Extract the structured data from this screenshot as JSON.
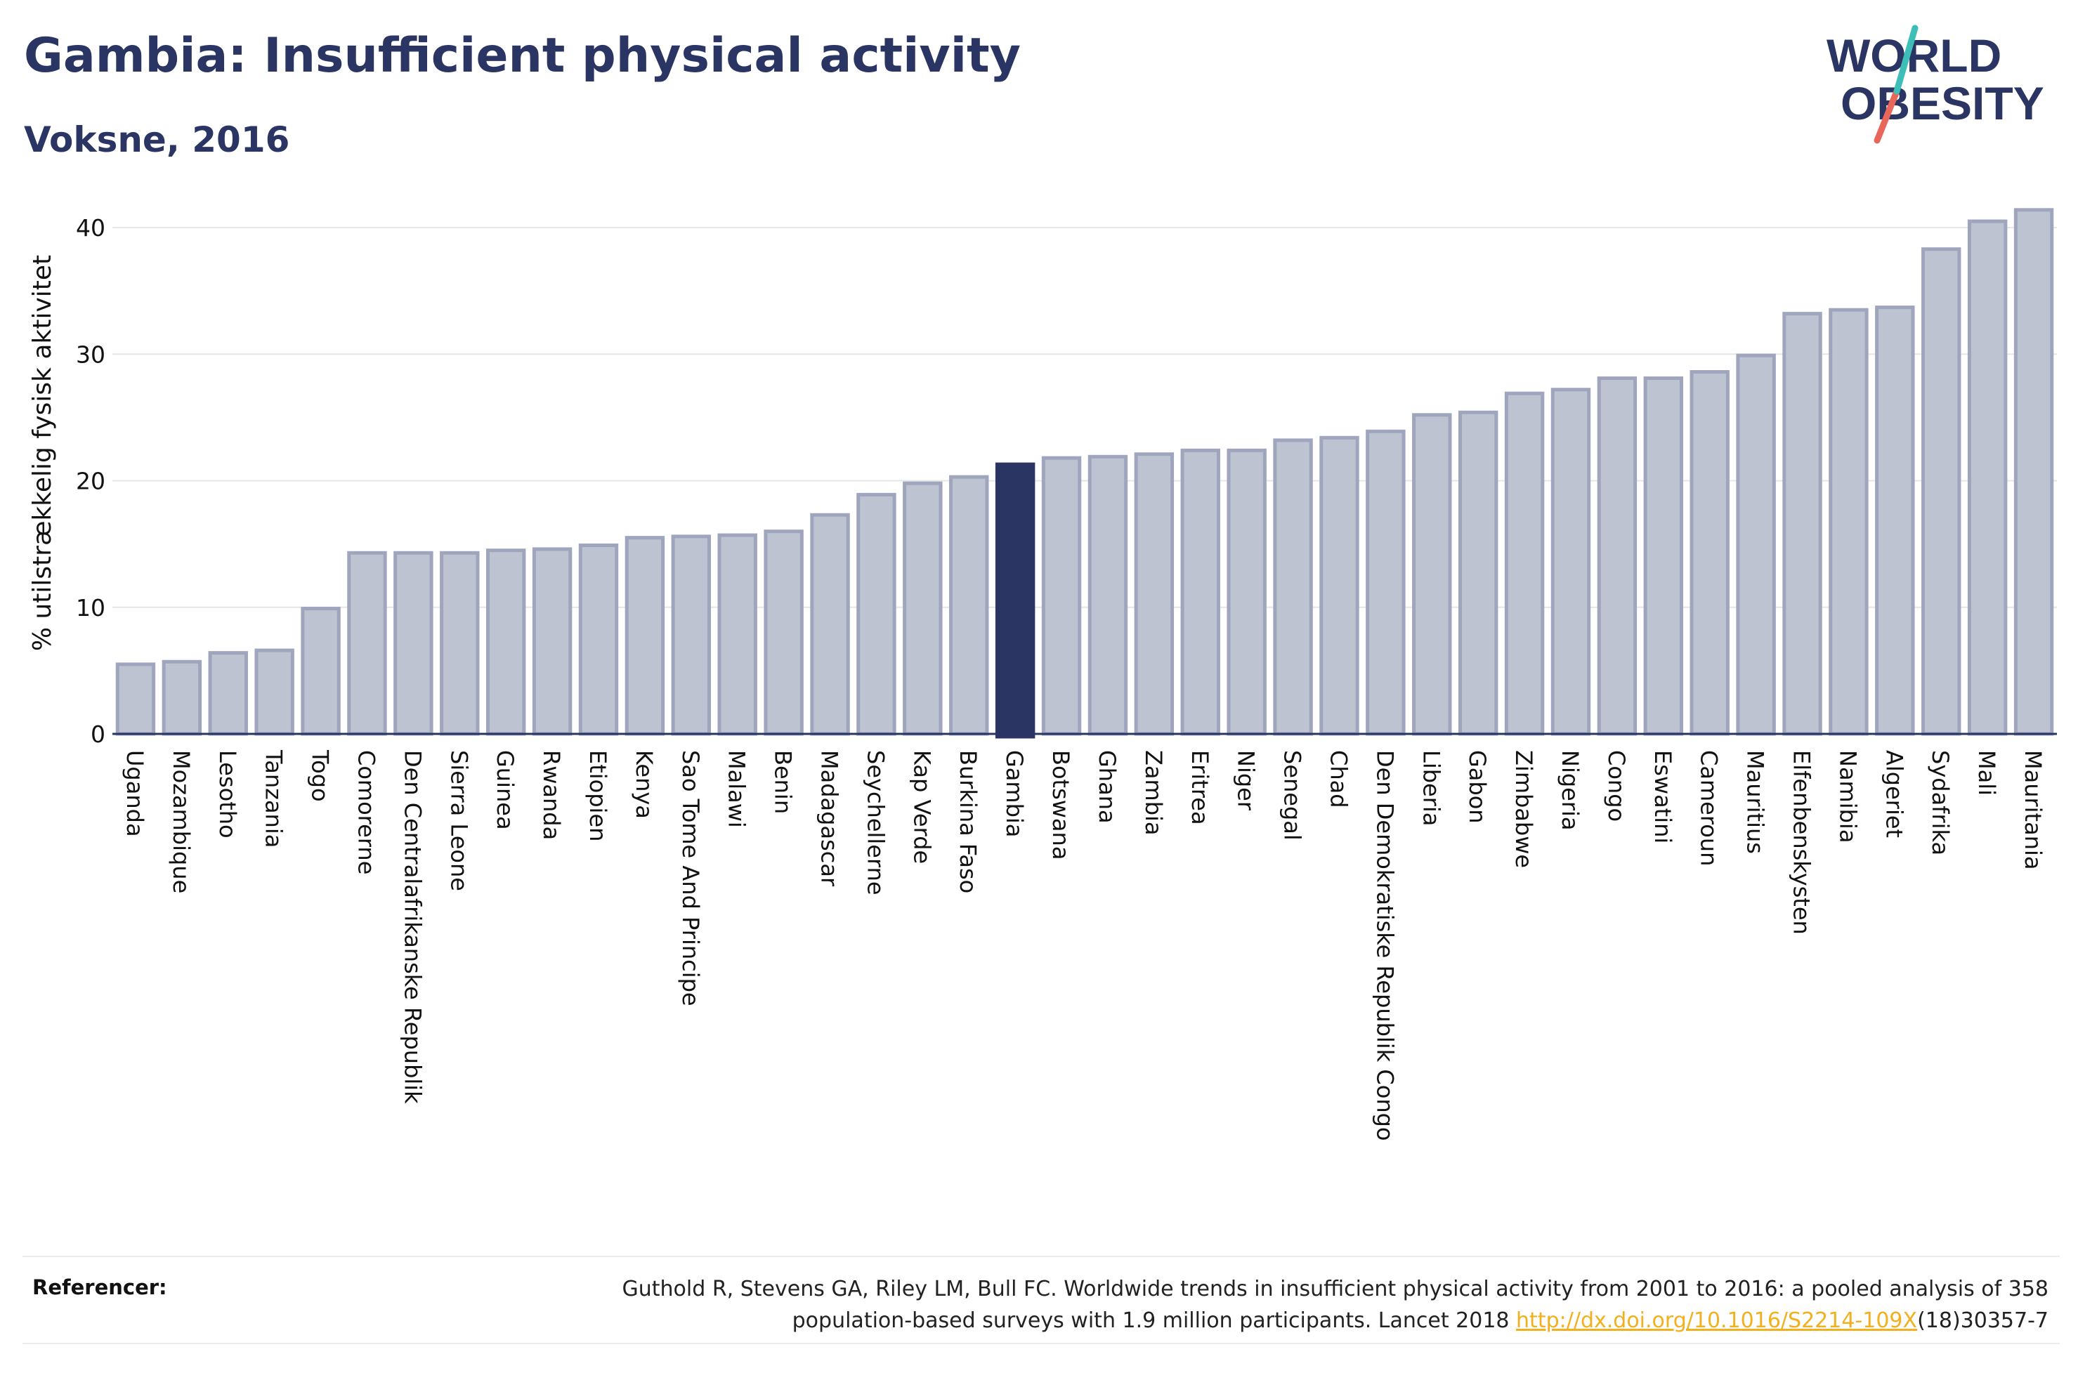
{
  "header": {
    "title": "Gambia: Insufficient physical activity",
    "subtitle": "Voksne, 2016"
  },
  "logo": {
    "line1": "WORLD",
    "line2": "OBESITY"
  },
  "references": {
    "label": "Referencer:",
    "text_line1": "Guthold R, Stevens GA, Riley LM, Bull FC. Worldwide trends in insufficient physical activity from 2001 to 2016: a pooled analysis of 358",
    "text_line2_before": "population-based surveys with 1.9 million participants. Lancet 2018 ",
    "link": "http://dx.doi.org/10.1016/S2214-109X",
    "text_line2_after": "(18)30357-7"
  },
  "colors": {
    "title": "#2a3563",
    "bar": "#bec3d1",
    "bar_border": "#9ea5bd",
    "highlight": "#2a3563",
    "grid": "#e6e6e6",
    "axis": "#2a3563",
    "link": "#f2b01e",
    "logo_teal": "#3dbfb8",
    "logo_coral": "#e8665a"
  },
  "chart_data": {
    "type": "bar",
    "title": "Gambia: Insufficient physical activity",
    "subtitle": "Voksne, 2016",
    "xlabel": "",
    "ylabel": "% utilstrækkelig fysisk aktivitet",
    "ylim": [
      0,
      43
    ],
    "yticks": [
      0,
      10,
      20,
      30,
      40
    ],
    "grid": true,
    "highlight": "Gambia",
    "categories": [
      "Uganda",
      "Mozambique",
      "Lesotho",
      "Tanzania",
      "Togo",
      "Comorerne",
      "Den Centralafrikanske Republik",
      "Sierra Leone",
      "Guinea",
      "Rwanda",
      "Etiopien",
      "Kenya",
      "Sao Tome And Principe",
      "Malawi",
      "Benin",
      "Madagascar",
      "Seychellerne",
      "Kap Verde",
      "Burkina Faso",
      "Gambia",
      "Botswana",
      "Ghana",
      "Zambia",
      "Eritrea",
      "Niger",
      "Senegal",
      "Chad",
      "Den Demokratiske Republik Congo",
      "Liberia",
      "Gabon",
      "Zimbabwe",
      "Nigeria",
      "Congo",
      "Eswatini",
      "Cameroun",
      "Mauritius",
      "Elfenbenskysten",
      "Namibia",
      "Algeriet",
      "Sydafrika",
      "Mali",
      "Mauritania"
    ],
    "values": [
      5.5,
      5.7,
      6.4,
      6.6,
      9.9,
      14.3,
      14.3,
      14.3,
      14.5,
      14.6,
      14.9,
      15.5,
      15.6,
      15.7,
      16.0,
      17.3,
      18.9,
      19.8,
      20.3,
      21.3,
      21.8,
      21.9,
      22.1,
      22.4,
      22.4,
      23.2,
      23.4,
      23.9,
      25.2,
      25.4,
      26.9,
      27.2,
      28.1,
      28.1,
      28.6,
      29.9,
      33.2,
      33.5,
      33.7,
      38.3,
      40.5,
      41.4
    ]
  }
}
